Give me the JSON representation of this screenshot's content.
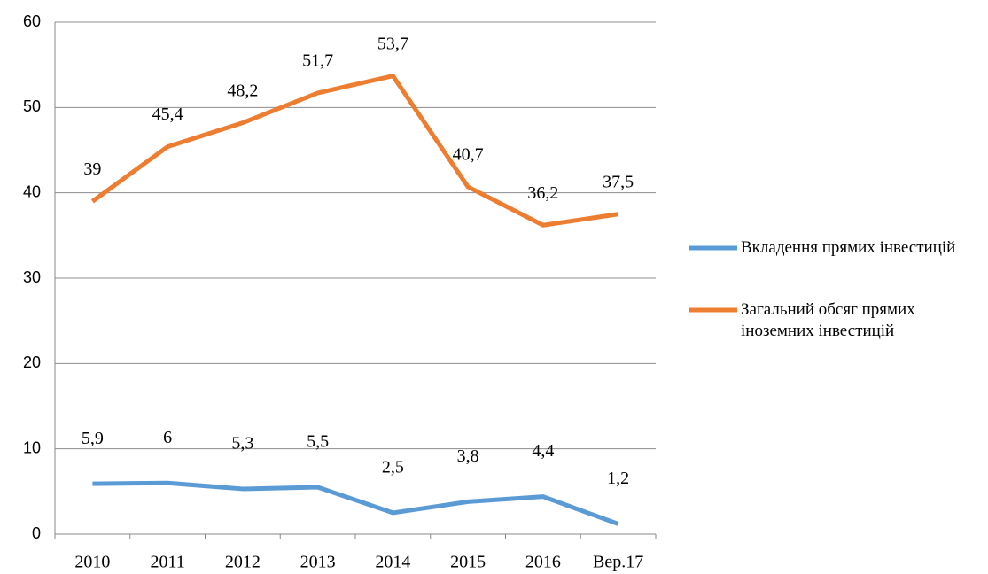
{
  "chart_data": {
    "type": "line",
    "categories": [
      "2010",
      "2011",
      "2012",
      "2013",
      "2014",
      "2015",
      "2016",
      "Вер.17"
    ],
    "series": [
      {
        "name": "Вкладення прямих інвестицій",
        "color": "#5b9bd5",
        "values": [
          5.9,
          6,
          5.3,
          5.5,
          2.5,
          3.8,
          4.4,
          1.2
        ],
        "value_labels": [
          "5,9",
          "6",
          "5,3",
          "5,5",
          "2,5",
          "3,8",
          "4,4",
          "1,2"
        ]
      },
      {
        "name": "Загальний обсяг прямих іноземних інвестицій",
        "color": "#ed7d31",
        "values": [
          39,
          45.4,
          48.2,
          51.7,
          53.7,
          40.7,
          36.2,
          37.5
        ],
        "value_labels": [
          "39",
          "45,4",
          "48,2",
          "51,7",
          "53,7",
          "40,7",
          "36,2",
          "37,5"
        ]
      }
    ],
    "ylim": [
      0,
      60
    ],
    "yticks": [
      0,
      10,
      20,
      30,
      40,
      50,
      60
    ],
    "grid": true,
    "legend": "right"
  }
}
